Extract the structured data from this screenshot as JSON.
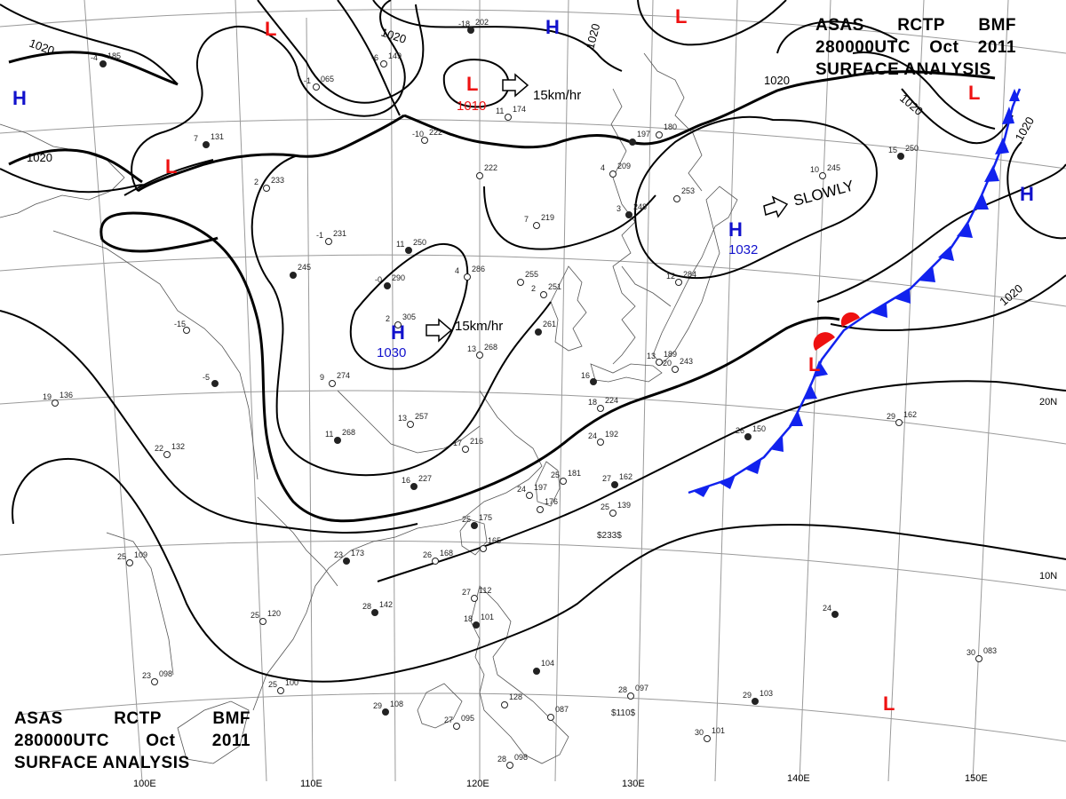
{
  "header": {
    "line1": [
      "ASAS",
      "RCTP",
      "BMF"
    ],
    "line2": [
      "280000UTC",
      "Oct",
      "2011"
    ],
    "line3": "SURFACE ANALYSIS"
  },
  "isobar_labels": [
    {
      "id": "isobar-1020-nw",
      "text": "1020"
    },
    {
      "id": "isobar-1020-west",
      "text": "1020"
    },
    {
      "id": "isobar-1020-north",
      "text": "1020"
    },
    {
      "id": "isobar-1020-n2",
      "text": "1020"
    },
    {
      "id": "isobar-1020-ne",
      "text": "1020"
    },
    {
      "id": "isobar-1020-ne2",
      "text": "1020"
    },
    {
      "id": "isobar-1020-far-ne",
      "text": "1020"
    },
    {
      "id": "isobar-1020-east",
      "text": "1020"
    }
  ],
  "pressure_centers": [
    {
      "id": "high-far-west",
      "type": "H",
      "value": ""
    },
    {
      "id": "low-nw",
      "type": "L",
      "value": ""
    },
    {
      "id": "low-north-1",
      "type": "L",
      "value": ""
    },
    {
      "id": "low-north-2",
      "type": "L",
      "value": "1010"
    },
    {
      "id": "high-north",
      "type": "H",
      "value": ""
    },
    {
      "id": "low-ne-top",
      "type": "L",
      "value": ""
    },
    {
      "id": "low-ne",
      "type": "L",
      "value": ""
    },
    {
      "id": "high-east",
      "type": "H",
      "value": ""
    },
    {
      "id": "high-japan-sea",
      "type": "H",
      "value": "1032"
    },
    {
      "id": "high-china",
      "type": "H",
      "value": "1030"
    },
    {
      "id": "low-front",
      "type": "L",
      "value": ""
    },
    {
      "id": "low-pacific",
      "type": "L",
      "value": ""
    }
  ],
  "motion_labels": [
    {
      "id": "motion-low",
      "text": "15km/hr"
    },
    {
      "id": "motion-high-east",
      "text": "SLOWLY"
    },
    {
      "id": "motion-high-china",
      "text": "15km/hr"
    }
  ],
  "longitude_labels": [
    "100E",
    "110E",
    "120E",
    "130E",
    "140E",
    "150E"
  ],
  "latitude_labels": [
    "20N",
    "10N"
  ],
  "stations": [
    {
      "id": "st-1",
      "t": "-4",
      "p": "185"
    },
    {
      "id": "st-2",
      "t": "-1",
      "p": "065"
    },
    {
      "id": "st-3",
      "t": "-6",
      "p": "149"
    },
    {
      "id": "st-4",
      "t": "-18",
      "p": "202"
    },
    {
      "id": "st-5",
      "t": "11",
      "p": "174"
    },
    {
      "id": "st-6",
      "t": "-10",
      "p": "222"
    },
    {
      "id": "st-7",
      "t": "7",
      "p": "131"
    },
    {
      "id": "st-8",
      "t": "2",
      "p": "233"
    },
    {
      "id": "st-9",
      "t": "-1",
      "p": "231"
    },
    {
      "id": "st-10",
      "t": "11",
      "p": "250"
    },
    {
      "id": "st-11",
      "t": "4",
      "p": "286"
    },
    {
      "id": "st-12",
      "t": "",
      "p": "255"
    },
    {
      "id": "st-13",
      "t": "-0",
      "p": "290"
    },
    {
      "id": "st-14",
      "t": "",
      "p": "222"
    },
    {
      "id": "st-15",
      "t": "7",
      "p": "219"
    },
    {
      "id": "st-16",
      "t": "",
      "p": "197"
    },
    {
      "id": "st-17",
      "t": "4",
      "p": "209"
    },
    {
      "id": "st-18",
      "t": "",
      "p": "180"
    },
    {
      "id": "st-19",
      "t": "3",
      "p": "248"
    },
    {
      "id": "st-20",
      "t": "",
      "p": "253"
    },
    {
      "id": "st-21",
      "t": "10",
      "p": "245"
    },
    {
      "id": "st-22",
      "t": "15",
      "p": "250"
    },
    {
      "id": "st-23",
      "t": "12",
      "p": "284"
    },
    {
      "id": "st-24",
      "t": "2",
      "p": "251"
    },
    {
      "id": "st-25",
      "t": "",
      "p": "261"
    },
    {
      "id": "st-26",
      "t": "2",
      "p": "305"
    },
    {
      "id": "st-27",
      "t": "13",
      "p": "268"
    },
    {
      "id": "st-28",
      "t": "",
      "p": "245"
    },
    {
      "id": "st-29",
      "t": "-15",
      "p": ""
    },
    {
      "id": "st-30",
      "t": "19",
      "p": "136"
    },
    {
      "id": "st-31",
      "t": "-5",
      "p": ""
    },
    {
      "id": "st-32",
      "t": "9",
      "p": "274"
    },
    {
      "id": "st-33",
      "t": "13",
      "p": "257"
    },
    {
      "id": "st-34",
      "t": "11",
      "p": "268"
    },
    {
      "id": "st-35",
      "t": "22",
      "p": "132"
    },
    {
      "id": "st-36",
      "t": "17",
      "p": "216"
    },
    {
      "id": "st-37",
      "t": "16",
      "p": "227"
    },
    {
      "id": "st-38",
      "t": "24",
      "p": "192"
    },
    {
      "id": "st-39",
      "t": "25",
      "p": "181"
    },
    {
      "id": "st-40",
      "t": "27",
      "p": "162"
    },
    {
      "id": "st-41",
      "t": "24",
      "p": "197"
    },
    {
      "id": "st-42",
      "t": "",
      "p": "176"
    },
    {
      "id": "st-43",
      "t": "25",
      "p": "175"
    },
    {
      "id": "st-44",
      "t": "25",
      "p": "139"
    },
    {
      "id": "st-45",
      "t": "",
      "p": "165"
    },
    {
      "id": "st-46",
      "t": "26",
      "p": "150"
    },
    {
      "id": "st-47",
      "t": "29",
      "p": "162"
    },
    {
      "id": "st-48",
      "t": "20",
      "p": "243"
    },
    {
      "id": "st-49",
      "t": "16",
      "p": ""
    },
    {
      "id": "st-50",
      "t": "18",
      "p": "224"
    },
    {
      "id": "st-51",
      "t": "13",
      "p": "189"
    },
    {
      "id": "st-52",
      "t": "23",
      "p": "173"
    },
    {
      "id": "st-53",
      "t": "26",
      "p": "168"
    },
    {
      "id": "st-54",
      "t": "25",
      "p": "109"
    },
    {
      "id": "st-55",
      "t": "28",
      "p": "142"
    },
    {
      "id": "st-56",
      "t": "25",
      "p": "120"
    },
    {
      "id": "st-57",
      "t": "27",
      "p": "112"
    },
    {
      "id": "st-58",
      "t": "18",
      "p": "101"
    },
    {
      "id": "st-59",
      "t": "23",
      "p": "098"
    },
    {
      "id": "st-60",
      "t": "25",
      "p": "100"
    },
    {
      "id": "st-61",
      "t": "29",
      "p": "108"
    },
    {
      "id": "st-62",
      "t": "27",
      "p": "095"
    },
    {
      "id": "st-63",
      "t": "",
      "p": "128"
    },
    {
      "id": "st-64",
      "t": "",
      "p": "104"
    },
    {
      "id": "st-65",
      "t": "",
      "p": "087"
    },
    {
      "id": "st-66",
      "t": "28",
      "p": "097"
    },
    {
      "id": "st-67",
      "t": "29",
      "p": "103"
    },
    {
      "id": "st-68",
      "t": "30",
      "p": "101"
    },
    {
      "id": "st-69",
      "t": "30",
      "p": "083"
    },
    {
      "id": "st-70",
      "t": "24",
      "p": ""
    },
    {
      "id": "st-71",
      "t": "28",
      "p": "098"
    }
  ],
  "station_extra": {
    "pressure_tendency_taiwan": "$233$",
    "pressure_tendency_ph": "$110$"
  },
  "colors": {
    "isobar": "#000000",
    "high": "#1111cc",
    "low": "#ee1111",
    "cold_front": "#1122ee",
    "warm_front": "#ee1111",
    "coast": "#555555",
    "grid": "#999999"
  }
}
